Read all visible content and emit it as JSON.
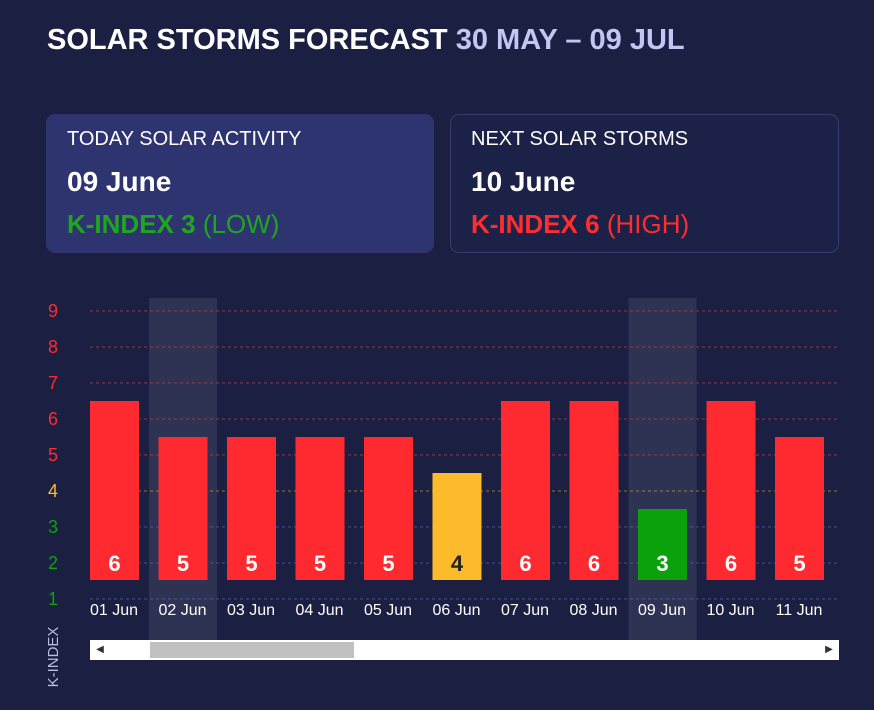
{
  "header": {
    "title": "SOLAR STORMS FORECAST",
    "range": "30 MAY – 09 JUL"
  },
  "today_card": {
    "label": "TODAY SOLAR ACTIVITY",
    "date": "09 June",
    "kindex": "K-INDEX 3",
    "level": "(LOW)"
  },
  "next_card": {
    "label": "NEXT SOLAR STORMS",
    "date": "10 June",
    "kindex": "K-INDEX 6",
    "level": "(HIGH)"
  },
  "colors": {
    "high": "#ff2a2f",
    "medium": "#fdbb2b",
    "low": "#0aa10a",
    "background": "#1b2043",
    "highlight": "#2e3354"
  },
  "chart_data": {
    "type": "bar",
    "categories": [
      "01 Jun",
      "02 Jun",
      "03 Jun",
      "04 Jun",
      "05 Jun",
      "06 Jun",
      "07 Jun",
      "08 Jun",
      "09 Jun",
      "10 Jun",
      "11 Jun"
    ],
    "values": [
      6,
      5,
      5,
      5,
      5,
      4,
      6,
      6,
      3,
      6,
      5
    ],
    "highlighted": [
      "02 Jun",
      "09 Jun"
    ],
    "yticks": [
      1,
      2,
      3,
      4,
      5,
      6,
      7,
      8,
      9
    ],
    "ylim": [
      1,
      9
    ],
    "ylabel": "K-INDEX",
    "grid": true
  },
  "scrollbar": {
    "left_arrow": "◀",
    "right_arrow": "▶"
  }
}
